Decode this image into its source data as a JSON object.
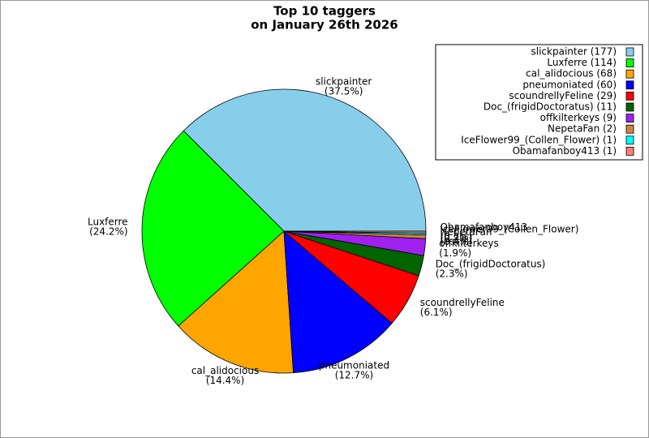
{
  "chart_data": {
    "type": "pie",
    "title_lines": [
      "Top 10 taggers",
      "on January 26th 2026"
    ],
    "categories": [
      "slickpainter",
      "Luxferre",
      "cal_alidocious",
      "pneumoniated",
      "scoundrellyFeline",
      "Doc_(frigidDoctoratus)",
      "offkilterkeys",
      "NepetaFan",
      "IceFlower99_(Collen_Flower)",
      "Obamafanboy413"
    ],
    "values": [
      177,
      114,
      68,
      60,
      29,
      11,
      9,
      2,
      1,
      1
    ],
    "percent_labels": [
      "(37.5%)",
      "(24.2%)",
      "(14.4%)",
      "(12.7%)",
      "(6.1%)",
      "(2.3%)",
      "(1.9%)",
      "(0.4%)",
      "(0.2%)",
      "(0.2%)"
    ],
    "legend_labels": [
      "slickpainter (177)",
      "Luxferre (114)",
      "cal_alidocious (68)",
      "pneumoniated (60)",
      "scoundrellyFeline (29)",
      "Doc_(frigidDoctoratus) (11)",
      "offkilterkeys (9)",
      "NepetaFan (2)",
      "IceFlower99_(Collen_Flower) (1)",
      "Obamafanboy413 (1)"
    ],
    "colors": [
      "#87ceeb",
      "#00ff00",
      "#ffa500",
      "#0000ff",
      "#ff0000",
      "#006400",
      "#a020f0",
      "#cd853f",
      "#00ffff",
      "#fa8072"
    ],
    "legend": "upper right"
  }
}
